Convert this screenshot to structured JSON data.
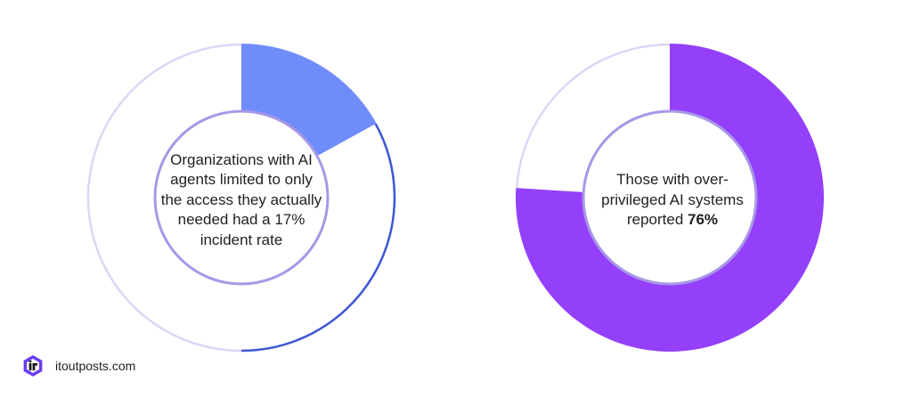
{
  "chart_data": [
    {
      "type": "pie",
      "variant": "donut",
      "slices": [
        {
          "label": "incident rate",
          "value": 17
        },
        {
          "label": "remainder",
          "value": 83
        }
      ],
      "unit": "%",
      "caption_parts": [
        {
          "text": "Organizations with AI agents limited to only the access they actually needed had a 17% incident rate",
          "bold": false
        }
      ],
      "colors": {
        "fill": "#6f8cfb",
        "ring_light": "#ddd6f5",
        "ring_accent": "#4058d4",
        "inner_ring": "#a798e6"
      }
    },
    {
      "type": "pie",
      "variant": "donut",
      "slices": [
        {
          "label": "reported",
          "value": 76
        },
        {
          "label": "remainder",
          "value": 24
        }
      ],
      "unit": "%",
      "caption_parts": [
        {
          "text": "Those with over-privileged AI systems reported ",
          "bold": false
        },
        {
          "text": "76%",
          "bold": true
        }
      ],
      "colors": {
        "fill": "#9440fb",
        "ring_light": "#ddd6f5",
        "ring_accent": "#9440fb",
        "inner_ring": "#a798e6"
      }
    }
  ],
  "brand": {
    "name": "itoutposts.com",
    "logo_icon": "itoutposts-hexagon-logo-icon",
    "logo_color": "#6a3cf0"
  }
}
